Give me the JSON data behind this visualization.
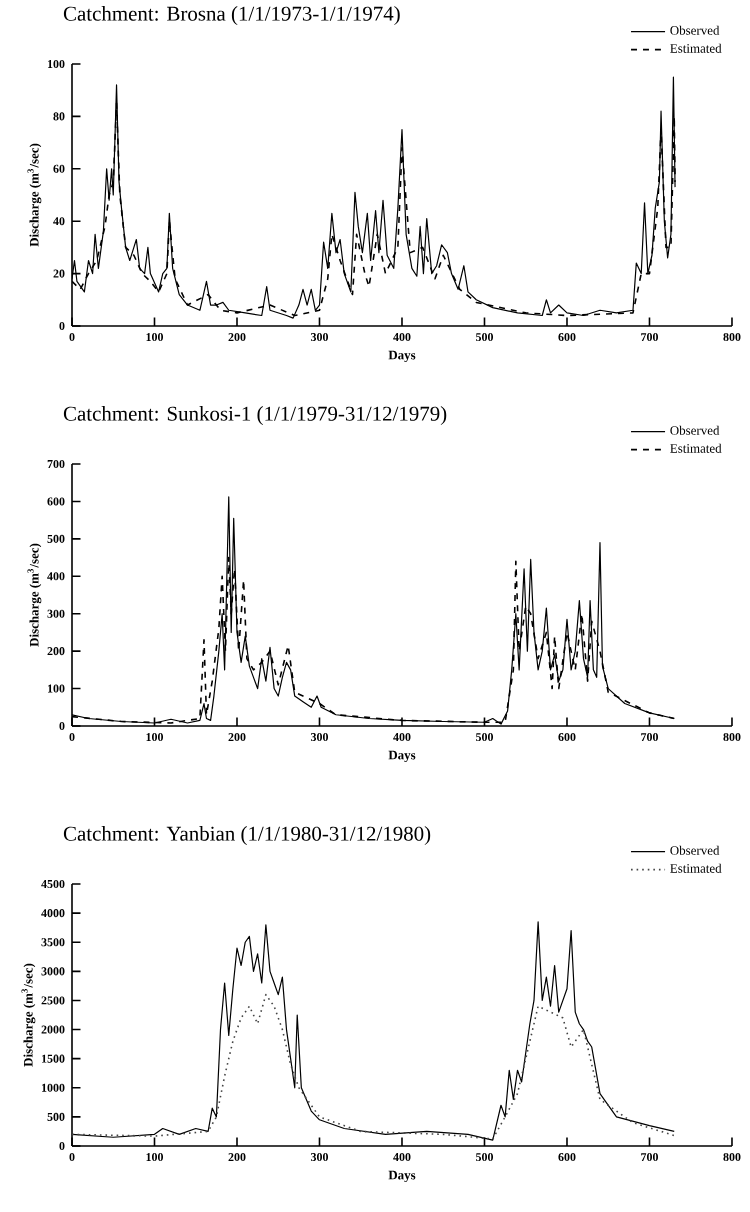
{
  "chart_data": [
    {
      "type": "line",
      "title": "Catchment: Brosna (1/1/1973-1/1/1974)",
      "xlabel": "Days",
      "ylabel": "Discharge (m$^{3}$/sec)",
      "xlim": [
        0,
        800
      ],
      "xticks": [
        0,
        100,
        200,
        300,
        400,
        500,
        600,
        700,
        800
      ],
      "ylim": [
        0,
        100
      ],
      "yticks": [
        0,
        20,
        40,
        60,
        80,
        100
      ],
      "legend": "top right",
      "series": [
        {
          "name": "Observed",
          "color": "#000000",
          "line_style": "solid",
          "x": [
            0,
            3,
            6,
            15,
            20,
            25,
            28,
            32,
            38,
            42,
            45,
            48,
            50,
            54,
            57,
            60,
            65,
            70,
            75,
            78,
            82,
            88,
            92,
            95,
            105,
            110,
            115,
            118,
            122,
            130,
            140,
            155,
            163,
            168,
            175,
            183,
            190,
            210,
            230,
            236,
            240,
            260,
            268,
            275,
            280,
            285,
            290,
            295,
            300,
            305,
            310,
            315,
            320,
            325,
            330,
            338,
            343,
            347,
            352,
            358,
            362,
            368,
            372,
            377,
            382,
            390,
            395,
            400,
            405,
            412,
            418,
            422,
            426,
            430,
            436,
            442,
            448,
            455,
            460,
            468,
            475,
            480,
            490,
            510,
            540,
            570,
            575,
            580,
            590,
            600,
            620,
            640,
            660,
            680,
            684,
            690,
            694,
            698,
            703,
            707,
            712,
            714,
            718,
            722,
            726,
            729,
            731
          ],
          "values": [
            18,
            25,
            17,
            13,
            25,
            20,
            35,
            22,
            36,
            60,
            48,
            60,
            50,
            92,
            55,
            45,
            30,
            25,
            30,
            33,
            22,
            20,
            30,
            20,
            13,
            20,
            22,
            43,
            22,
            12,
            8,
            6,
            17,
            8,
            8,
            9,
            6,
            5,
            4,
            15,
            6,
            4,
            3,
            8,
            14,
            8,
            14,
            6,
            8,
            32,
            22,
            43,
            28,
            33,
            20,
            13,
            51,
            38,
            28,
            43,
            25,
            44,
            28,
            48,
            27,
            22,
            45,
            75,
            35,
            22,
            19,
            38,
            20,
            41,
            20,
            23,
            31,
            28,
            20,
            14,
            23,
            13,
            10,
            7,
            5,
            4,
            10,
            5,
            8,
            5,
            4,
            6,
            5,
            6,
            24,
            20,
            47,
            20,
            27,
            45,
            55,
            82,
            40,
            26,
            35,
            95,
            53
          ]
        },
        {
          "name": "Estimated",
          "color": "#000000",
          "line_style": "dashed",
          "x": [
            0,
            10,
            20,
            30,
            40,
            45,
            50,
            54,
            58,
            65,
            75,
            85,
            95,
            105,
            115,
            118,
            125,
            140,
            165,
            180,
            200,
            240,
            270,
            300,
            310,
            315,
            325,
            340,
            345,
            355,
            360,
            370,
            380,
            395,
            400,
            410,
            425,
            440,
            450,
            470,
            490,
            550,
            600,
            680,
            690,
            700,
            710,
            714,
            720,
            726,
            730,
            731
          ],
          "values": [
            17,
            14,
            20,
            25,
            38,
            50,
            55,
            85,
            50,
            30,
            27,
            20,
            17,
            13,
            20,
            40,
            18,
            8,
            12,
            6,
            5,
            8,
            4,
            6,
            18,
            35,
            25,
            12,
            35,
            20,
            15,
            35,
            20,
            30,
            68,
            28,
            30,
            18,
            27,
            14,
            9,
            5,
            4,
            5,
            20,
            20,
            45,
            75,
            30,
            30,
            80,
            55
          ]
        }
      ]
    },
    {
      "type": "line",
      "title": "Catchment: Sunkosi-1 (1/1/1979-31/12/1979)",
      "xlabel": "Days",
      "ylabel": "Discharge (m$^{3}$/sec)",
      "xlim": [
        0,
        800
      ],
      "xticks": [
        0,
        100,
        200,
        300,
        400,
        500,
        600,
        700,
        800
      ],
      "ylim": [
        0,
        700
      ],
      "yticks": [
        0,
        100,
        200,
        300,
        400,
        500,
        600,
        700
      ],
      "legend": "top right",
      "series": [
        {
          "name": "Observed",
          "color": "#000000",
          "line_style": "solid",
          "x": [
            0,
            20,
            60,
            100,
            120,
            140,
            155,
            160,
            163,
            168,
            172,
            178,
            182,
            185,
            190,
            193,
            196,
            200,
            205,
            210,
            215,
            220,
            225,
            230,
            235,
            240,
            245,
            250,
            255,
            260,
            265,
            270,
            280,
            290,
            297,
            302,
            320,
            360,
            400,
            450,
            500,
            510,
            520,
            528,
            533,
            538,
            542,
            548,
            552,
            556,
            560,
            565,
            570,
            575,
            580,
            585,
            590,
            595,
            600,
            605,
            610,
            615,
            620,
            625,
            628,
            632,
            636,
            640,
            643,
            650,
            670,
            700,
            730
          ],
          "values": [
            30,
            20,
            12,
            8,
            18,
            8,
            15,
            60,
            20,
            15,
            80,
            200,
            300,
            150,
            612,
            250,
            555,
            250,
            170,
            240,
            160,
            130,
            100,
            180,
            120,
            210,
            100,
            80,
            130,
            170,
            150,
            80,
            65,
            50,
            80,
            50,
            30,
            20,
            15,
            12,
            10,
            20,
            5,
            40,
            150,
            300,
            150,
            420,
            200,
            445,
            250,
            150,
            200,
            315,
            150,
            190,
            120,
            150,
            285,
            150,
            200,
            335,
            180,
            130,
            335,
            150,
            130,
            490,
            160,
            100,
            60,
            35,
            20
          ]
        },
        {
          "name": "Estimated",
          "color": "#000000",
          "line_style": "dashed",
          "x": [
            0,
            60,
            120,
            155,
            160,
            163,
            170,
            178,
            182,
            186,
            190,
            193,
            197,
            202,
            208,
            212,
            220,
            230,
            240,
            250,
            262,
            270,
            300,
            320,
            400,
            500,
            525,
            535,
            538,
            542,
            550,
            556,
            565,
            575,
            582,
            585,
            590,
            600,
            610,
            618,
            625,
            630,
            640,
            650,
            700,
            730
          ],
          "values": [
            25,
            12,
            8,
            20,
            230,
            30,
            120,
            260,
            400,
            200,
            450,
            300,
            420,
            200,
            390,
            180,
            150,
            170,
            200,
            110,
            215,
            90,
            60,
            30,
            15,
            10,
            10,
            150,
            440,
            200,
            320,
            300,
            180,
            250,
            100,
            240,
            100,
            250,
            150,
            300,
            120,
            280,
            200,
            90,
            35,
            20
          ]
        }
      ]
    },
    {
      "type": "line",
      "title": "Catchment: Yanbian (1/1/1980-31/12/1980)",
      "xlabel": "Days",
      "ylabel": "Discharge (m$^{3}$/sec)",
      "xlim": [
        0,
        800
      ],
      "xticks": [
        0,
        100,
        200,
        300,
        400,
        500,
        600,
        700,
        800
      ],
      "ylim": [
        0,
        4500
      ],
      "yticks": [
        0,
        500,
        1000,
        1500,
        2000,
        2500,
        3000,
        3500,
        4000,
        4500
      ],
      "legend": "top right",
      "series": [
        {
          "name": "Observed",
          "color": "#000000",
          "line_style": "solid",
          "x": [
            0,
            50,
            100,
            110,
            130,
            150,
            165,
            170,
            175,
            180,
            185,
            190,
            195,
            200,
            205,
            210,
            215,
            220,
            225,
            230,
            235,
            240,
            245,
            250,
            255,
            260,
            265,
            270,
            273,
            278,
            290,
            300,
            330,
            380,
            430,
            480,
            510,
            520,
            525,
            530,
            535,
            540,
            545,
            555,
            560,
            565,
            570,
            575,
            580,
            585,
            590,
            600,
            605,
            610,
            615,
            620,
            625,
            630,
            640,
            660,
            700,
            730
          ],
          "values": [
            200,
            150,
            200,
            300,
            200,
            300,
            250,
            650,
            500,
            2000,
            2800,
            1900,
            2700,
            3400,
            3100,
            3500,
            3600,
            3000,
            3300,
            2800,
            3800,
            3000,
            2800,
            2600,
            2900,
            2000,
            1500,
            1000,
            2250,
            1000,
            600,
            450,
            300,
            200,
            250,
            200,
            100,
            700,
            500,
            1300,
            800,
            1300,
            1100,
            2100,
            2500,
            3850,
            2500,
            2900,
            2400,
            3100,
            2300,
            2700,
            3700,
            2300,
            2100,
            2000,
            1800,
            1700,
            900,
            500,
            350,
            250
          ]
        },
        {
          "name": "Estimated",
          "color": "#444444",
          "line_style": "dotted",
          "x": [
            0,
            100,
            165,
            175,
            185,
            195,
            205,
            215,
            225,
            235,
            245,
            255,
            265,
            275,
            300,
            350,
            450,
            510,
            525,
            540,
            555,
            565,
            580,
            595,
            605,
            620,
            640,
            680,
            730
          ],
          "values": [
            200,
            170,
            250,
            500,
            1200,
            1800,
            2200,
            2400,
            2100,
            2600,
            2400,
            2000,
            1400,
            1000,
            500,
            250,
            200,
            120,
            500,
            900,
            1800,
            2400,
            2300,
            2200,
            1700,
            2000,
            800,
            400,
            180
          ]
        }
      ]
    }
  ]
}
